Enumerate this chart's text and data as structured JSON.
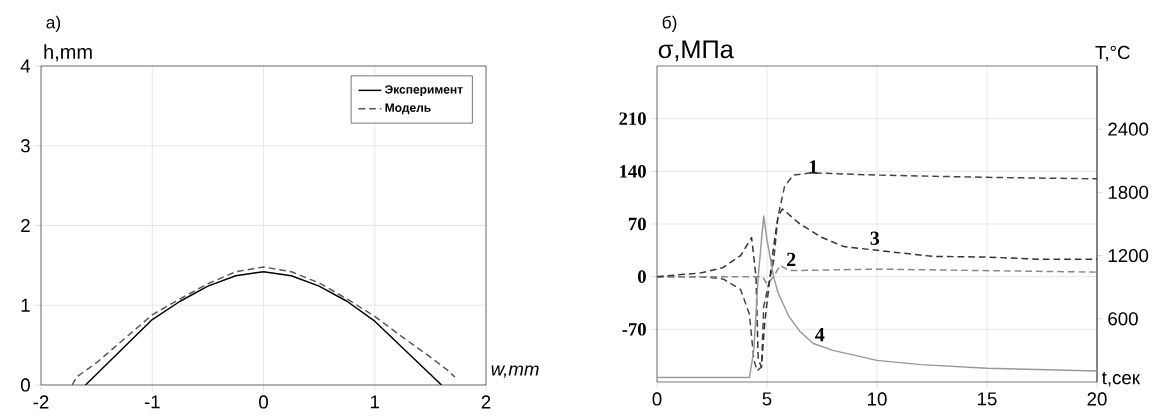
{
  "chart_data": [
    {
      "type": "line",
      "title": "а)",
      "xlabel": "w,mm",
      "ylabel": "h,mm",
      "xlim": [
        -2,
        2
      ],
      "ylim": [
        0,
        4
      ],
      "xticks": [
        -2,
        -1,
        0,
        1,
        2
      ],
      "yticks": [
        0,
        1,
        2,
        3,
        4
      ],
      "grid": true,
      "legend": "top right",
      "marker": "none",
      "series": [
        {
          "name": "Эксперимент",
          "color": "#000000",
          "line_style": "solid",
          "x": [
            -1.6,
            -1.3,
            -1,
            -0.75,
            -0.5,
            -0.25,
            0,
            0.25,
            0.5,
            0.75,
            1,
            1.3,
            1.6
          ],
          "values": [
            0,
            0.41,
            0.82,
            1.05,
            1.24,
            1.37,
            1.42,
            1.37,
            1.24,
            1.05,
            0.8,
            0.4,
            0
          ]
        },
        {
          "name": "Модель",
          "color": "#555555",
          "line_style": "dashed",
          "x": [
            -1.72,
            -1.68,
            -1.6,
            -1.5,
            -1.25,
            -1,
            -0.75,
            -0.5,
            -0.25,
            0,
            0.25,
            0.5,
            0.75,
            1,
            1.25,
            1.5,
            1.65,
            1.72
          ],
          "values": [
            0,
            0.1,
            0.18,
            0.28,
            0.58,
            0.88,
            1.08,
            1.27,
            1.42,
            1.48,
            1.42,
            1.28,
            1.08,
            0.86,
            0.6,
            0.35,
            0.19,
            0.1
          ]
        }
      ]
    },
    {
      "type": "line",
      "title": "б)",
      "xlabel": "t,сек",
      "ylabel": "σ,МПа",
      "y2label": "T,°C",
      "xlim": [
        0,
        20
      ],
      "ylim": [
        -140,
        280
      ],
      "y2lim": [
        0,
        3000
      ],
      "xticks": [
        0,
        5,
        10,
        15,
        20
      ],
      "yticks": [
        -70,
        0,
        70,
        140,
        210
      ],
      "y2ticks": [
        600,
        1200,
        1800,
        2400
      ],
      "grid": true,
      "marker": "none",
      "series": [
        {
          "name": "1",
          "color": "#444444",
          "line_style": "dashed",
          "x": [
            0,
            2,
            3,
            3.8,
            4.2,
            4.4,
            4.55,
            4.75,
            4.85,
            5.0,
            5.3,
            5.5,
            5.8,
            6.2,
            7,
            10,
            15,
            20
          ],
          "values": [
            0,
            0,
            -3,
            -17,
            -50,
            -110,
            -125,
            -120,
            -40,
            -20,
            20,
            80,
            120,
            135,
            138,
            135,
            132,
            130
          ]
        },
        {
          "name": "2",
          "color": "#888888",
          "line_style": "dashed",
          "x": [
            0,
            4.8,
            5.0,
            5.3,
            5.6,
            6,
            10,
            15,
            20
          ],
          "values": [
            0,
            0,
            -10,
            0,
            15,
            8,
            10,
            8,
            6
          ]
        },
        {
          "name": "3",
          "color": "#333333",
          "line_style": "dashed",
          "x": [
            0,
            2,
            3,
            3.8,
            4.3,
            4.5,
            4.6,
            4.75,
            4.9,
            5.1,
            5.3,
            5.5,
            5.7,
            6.5,
            7.5,
            8.5,
            10,
            12.5,
            15,
            17.5,
            20
          ],
          "values": [
            0,
            5,
            12,
            28,
            52,
            0,
            -110,
            -120,
            -60,
            -10,
            40,
            80,
            90,
            70,
            52,
            40,
            35,
            27,
            26,
            23,
            23
          ]
        },
        {
          "name": "4",
          "color": "#999999",
          "line_style": "solid",
          "axis": "y2",
          "x": [
            0,
            4.2,
            4.4,
            4.6,
            4.85,
            5.0,
            5.3,
            5.5,
            6,
            6.5,
            7.1,
            8,
            10,
            12,
            15,
            20
          ],
          "values": [
            42,
            42,
            300,
            1000,
            1575,
            1350,
            1000,
            850,
            620,
            480,
            365,
            300,
            205,
            165,
            130,
            105
          ]
        }
      ]
    }
  ]
}
